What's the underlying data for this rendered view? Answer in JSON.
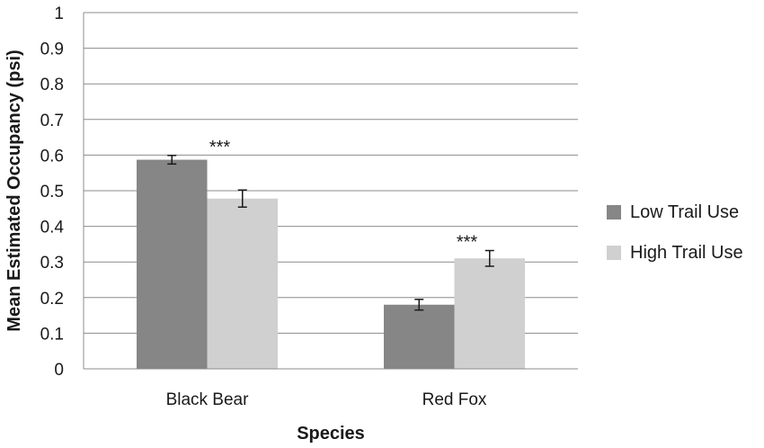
{
  "chart_data": {
    "type": "bar",
    "title": "",
    "xlabel": "Species",
    "ylabel": "Mean Estimated Occupancy (psi)",
    "ylim": [
      0,
      1
    ],
    "yticks": [
      "0",
      "0.1",
      "0.2",
      "0.3",
      "0.4",
      "0.5",
      "0.6",
      "0.7",
      "0.8",
      "0.9",
      "1"
    ],
    "categories": [
      "Black Bear",
      "Red Fox"
    ],
    "series": [
      {
        "name": "Low Trail Use",
        "values": [
          0.587,
          0.18
        ],
        "errors": [
          0.012,
          0.015
        ],
        "color": "#868686"
      },
      {
        "name": "High Trail Use",
        "values": [
          0.478,
          0.31
        ],
        "errors": [
          0.024,
          0.022
        ],
        "color": "#d0d0d0"
      }
    ],
    "annotations": [
      {
        "text": "***",
        "category": "Black Bear"
      },
      {
        "text": "***",
        "category": "Red Fox"
      }
    ],
    "grid": true,
    "legend_position": "right"
  }
}
